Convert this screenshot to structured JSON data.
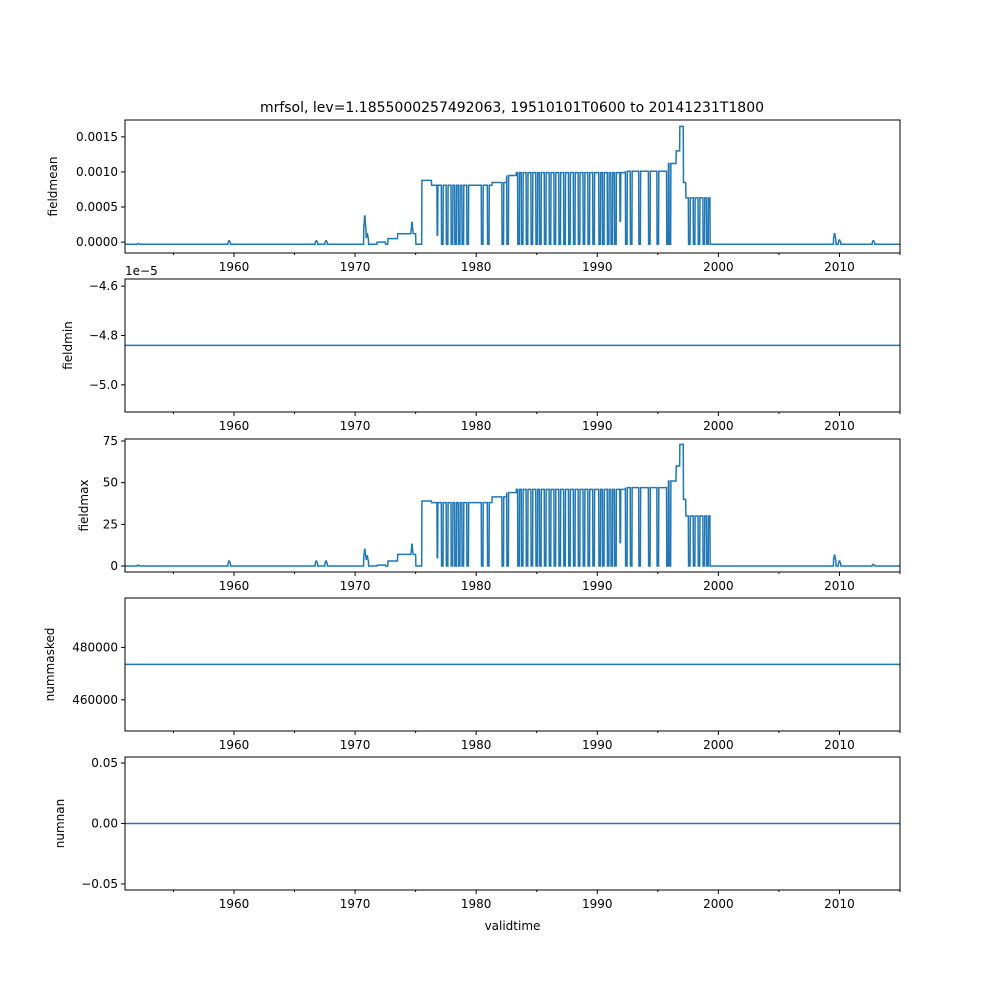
{
  "chart_data": [
    {
      "type": "line",
      "title": "mrfsol, lev=1.1855000257492063, 19510101T0600 to 20141231T1800",
      "ylabel": "fieldmean",
      "xlabel": "",
      "xlim": [
        1951.0,
        2015.0
      ],
      "ylim": [
        -0.000155,
        0.00174
      ],
      "yticks": [
        0.0,
        0.0005,
        0.001,
        0.0015
      ],
      "ytick_labels": [
        "0.0000",
        "0.0005",
        "0.0010",
        "0.0015"
      ],
      "baseline": -3e-05,
      "plateaus": [
        [
          1971.8,
          1972.5,
          0.0
        ],
        [
          1972.7,
          1973.5,
          5e-05
        ],
        [
          1973.5,
          1975.0,
          0.00012
        ],
        [
          1975.5,
          1976.3,
          0.00088
        ],
        [
          1976.3,
          1981.3,
          0.00081
        ],
        [
          1981.3,
          1982.5,
          0.00085
        ],
        [
          1982.5,
          1983.3,
          0.00095
        ],
        [
          1983.3,
          1992.3,
          0.00099
        ],
        [
          1992.3,
          1995.8,
          0.00101
        ],
        [
          1995.8,
          1996.5,
          0.00112
        ],
        [
          1996.5,
          1996.8,
          0.0013
        ],
        [
          1996.8,
          1997.1,
          0.00165
        ],
        [
          1997.1,
          1997.3,
          0.00085
        ],
        [
          1997.3,
          1999.3,
          0.00063
        ]
      ],
      "spikes": [
        [
          1952.1,
          -2e-05
        ],
        [
          1959.6,
          2e-05
        ],
        [
          1966.8,
          2e-05
        ],
        [
          1967.6,
          2e-05
        ],
        [
          1970.8,
          0.00037
        ],
        [
          1971.0,
          0.00012
        ],
        [
          1974.7,
          0.00028
        ],
        [
          1976.8,
          0.0001
        ],
        [
          1991.9,
          0.0003
        ],
        [
          2009.6,
          0.00012
        ],
        [
          2010.0,
          3e-05
        ],
        [
          2012.8,
          2e-05
        ]
      ]
    },
    {
      "type": "line",
      "ylabel": "fieldmin",
      "xlim": [
        1951.0,
        2015.0
      ],
      "ylim": [
        -5.11,
        -4.571
      ],
      "offset_text": "1e−5",
      "yticks": [
        -5.0,
        -4.8,
        -4.6
      ],
      "ytick_labels": [
        "−5.0",
        "−4.8",
        "−4.6"
      ],
      "baseline": -4.84,
      "plateaus": [],
      "spikes": []
    },
    {
      "type": "line",
      "ylabel": "fieldmax",
      "xlim": [
        1951.0,
        2015.0
      ],
      "ylim": [
        -3.6,
        76.2
      ],
      "yticks": [
        0,
        25,
        50,
        75
      ],
      "ytick_labels": [
        "0",
        "25",
        "50",
        "75"
      ],
      "baseline": 0,
      "plateaus": [
        [
          1971.8,
          1972.5,
          0.5
        ],
        [
          1972.7,
          1973.5,
          3
        ],
        [
          1973.5,
          1975.0,
          7
        ],
        [
          1975.5,
          1976.3,
          39
        ],
        [
          1976.3,
          1981.3,
          38
        ],
        [
          1981.3,
          1982.5,
          41.5
        ],
        [
          1982.5,
          1983.3,
          44
        ],
        [
          1983.3,
          1992.3,
          46
        ],
        [
          1992.3,
          1995.8,
          47
        ],
        [
          1995.8,
          1996.5,
          51
        ],
        [
          1996.5,
          1996.8,
          60
        ],
        [
          1996.8,
          1997.1,
          73
        ],
        [
          1997.1,
          1997.3,
          40
        ],
        [
          1997.3,
          1999.3,
          30
        ]
      ],
      "spikes": [
        [
          1952.1,
          0.5
        ],
        [
          1959.6,
          3
        ],
        [
          1966.8,
          3
        ],
        [
          1967.6,
          3
        ],
        [
          1970.8,
          10
        ],
        [
          1971.0,
          6
        ],
        [
          1974.7,
          13
        ],
        [
          1976.8,
          5
        ],
        [
          1991.9,
          14
        ],
        [
          2009.6,
          6.5
        ],
        [
          2010.0,
          3
        ],
        [
          2012.8,
          1
        ]
      ]
    },
    {
      "type": "line",
      "ylabel": "nummasked",
      "xlim": [
        1951.0,
        2015.0
      ],
      "ylim": [
        448100,
        498850
      ],
      "yticks": [
        460000,
        480000
      ],
      "ytick_labels": [
        "460000",
        "480000"
      ],
      "baseline": 473500,
      "plateaus": [],
      "spikes": []
    },
    {
      "type": "line",
      "ylabel": "numnan",
      "xlabel": "validtime",
      "xlim": [
        1951.0,
        2015.0
      ],
      "ylim": [
        -0.055,
        0.055
      ],
      "yticks": [
        -0.05,
        0.0,
        0.05
      ],
      "ytick_labels": [
        "−0.05",
        "0.00",
        "0.05"
      ],
      "baseline": 0,
      "plateaus": [],
      "spikes": []
    }
  ],
  "shared": {
    "xticks": [
      1960,
      1970,
      1980,
      1990,
      2000,
      2010
    ],
    "xtick_labels": [
      "1960",
      "1970",
      "1980",
      "1990",
      "2000",
      "2010"
    ],
    "minor_xticks": [
      1955,
      1965,
      1975,
      1985,
      1995,
      2005,
      2015
    ],
    "dropouts": [
      1977.2,
      1977.6,
      1978.0,
      1978.3,
      1978.6,
      1978.9,
      1979.3,
      1980.5,
      1981.0,
      1982.2,
      1982.6,
      1983.5,
      1983.8,
      1984.2,
      1984.6,
      1985.0,
      1985.3,
      1985.7,
      1986.1,
      1986.5,
      1986.9,
      1987.3,
      1987.7,
      1988.1,
      1988.5,
      1988.9,
      1989.3,
      1989.7,
      1990.2,
      1990.5,
      1990.9,
      1991.2,
      1991.5,
      1992.4,
      1992.8,
      1993.5,
      1994.3,
      1995.0,
      1995.8,
      1996.0,
      1997.6,
      1998.0,
      1998.4,
      1998.8,
      1999.1
    ],
    "line_color": "#1f77b4"
  }
}
